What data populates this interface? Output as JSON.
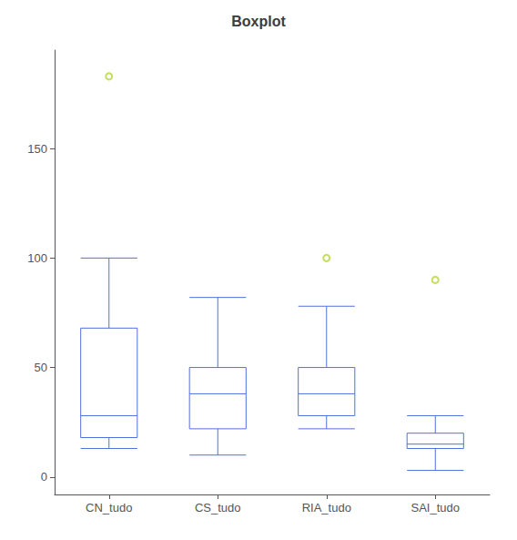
{
  "chart_data": {
    "type": "boxplot",
    "title": "Boxplot",
    "categories": [
      "CN_tudo",
      "CS_tudo",
      "RIA_tudo",
      "SAI_tudo"
    ],
    "boxes": [
      {
        "q1": 18,
        "median": 28,
        "q3": 68,
        "whisker_low": 13,
        "whisker_high": 100,
        "outliers": [
          183
        ]
      },
      {
        "q1": 22,
        "median": 38,
        "q3": 50,
        "whisker_low": 10,
        "whisker_high": 82,
        "outliers": []
      },
      {
        "q1": 28,
        "median": 38,
        "q3": 50,
        "whisker_low": 22,
        "whisker_high": 78,
        "outliers": [
          100
        ]
      },
      {
        "q1": 13,
        "median": 15,
        "q3": 20,
        "whisker_low": 3,
        "whisker_high": 28,
        "outliers": [
          90
        ]
      }
    ],
    "ylim": [
      -8,
      195
    ],
    "yticks": [
      0,
      50,
      100,
      150
    ],
    "grid": false
  }
}
